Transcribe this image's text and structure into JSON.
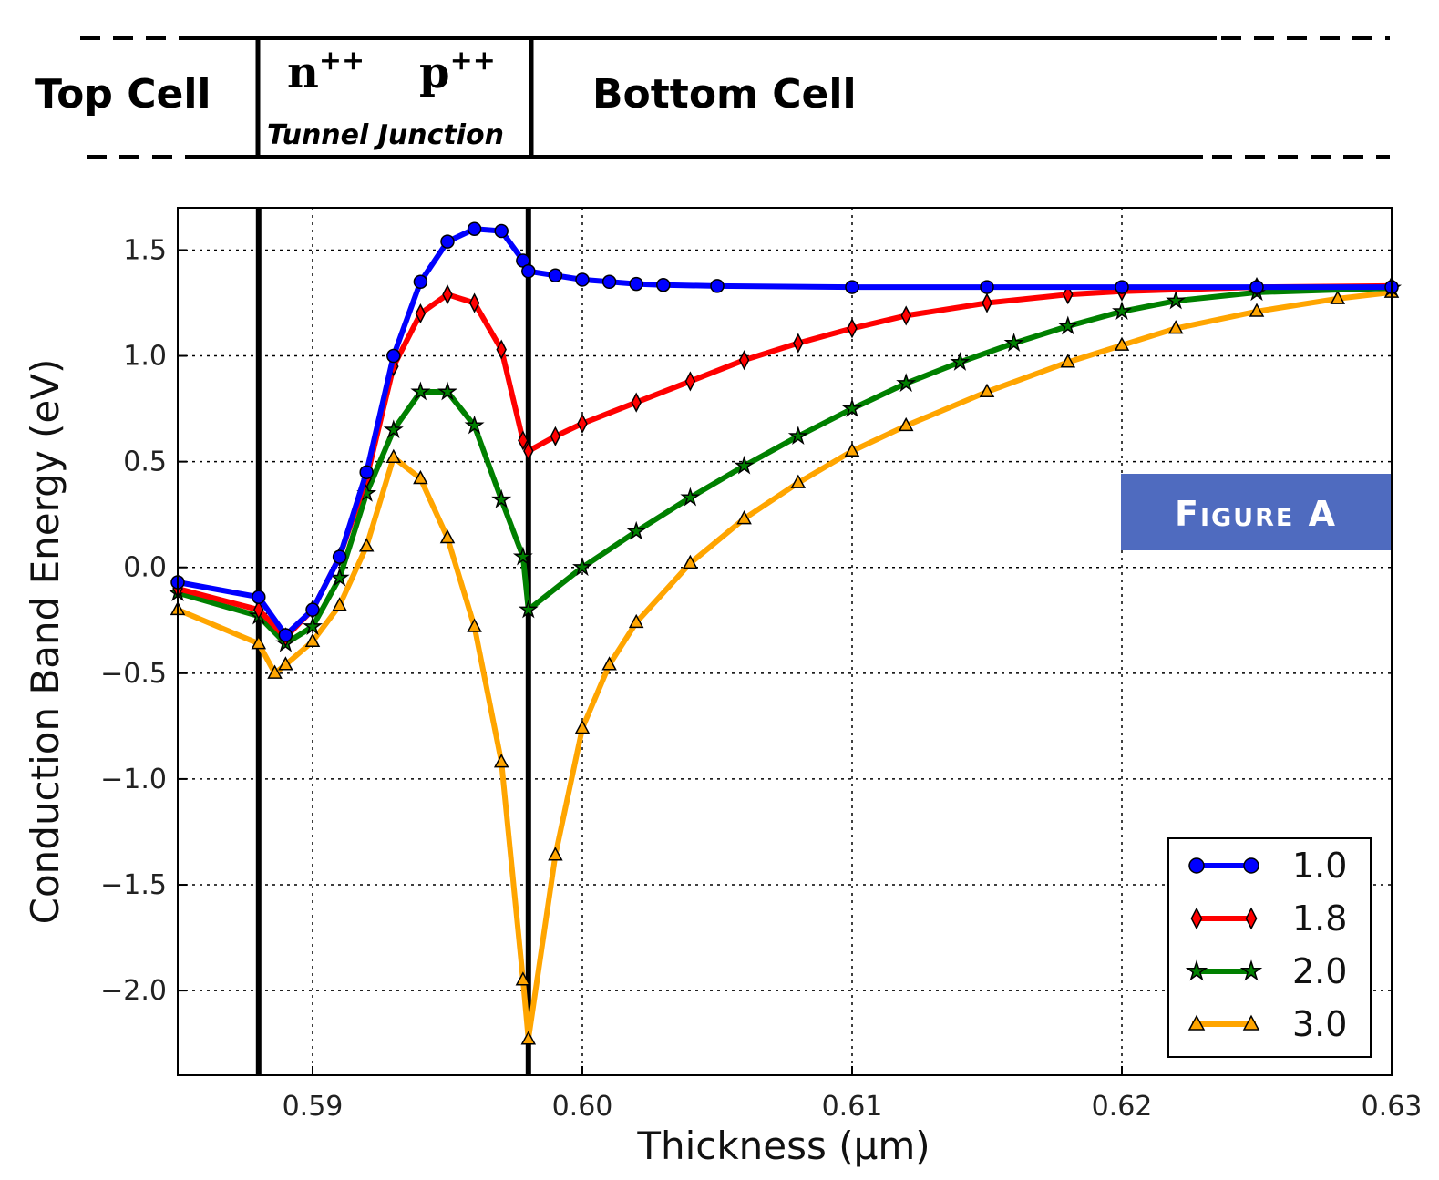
{
  "header": {
    "top_cell": "Top Cell",
    "n_label": "n",
    "n_sup": "++",
    "p_label": "p",
    "p_sup": "++",
    "tunnel_junction": "Tunnel Junction",
    "bottom_cell": "Bottom Cell"
  },
  "badge": {
    "text": "Figure A",
    "color": "#4f6bbf"
  },
  "chart_data": {
    "type": "line",
    "title": "",
    "xlabel": "Thickness (μm)",
    "ylabel": "Conduction Band Energy (eV)",
    "xlim": [
      0.585,
      0.63
    ],
    "ylim": [
      -2.4,
      1.7
    ],
    "xticks": [
      0.59,
      0.6,
      0.61,
      0.62,
      0.63
    ],
    "xtick_labels": [
      "0.59",
      "0.60",
      "0.61",
      "0.62",
      "0.63"
    ],
    "yticks": [
      1.5,
      1.0,
      0.5,
      0.0,
      -0.5,
      -1.0,
      -1.5,
      -2.0
    ],
    "ytick_labels": [
      "1.5",
      "1.0",
      "0.5",
      "0.0",
      "−0.5",
      "−1.0",
      "−1.5",
      "−2.0"
    ],
    "grid": true,
    "legend_position": "bottom-right",
    "vertical_lines": [
      0.588,
      0.598
    ],
    "series": [
      {
        "name": "1.0",
        "color": "#0000ff",
        "marker": "circle",
        "points": [
          [
            0.585,
            -0.07
          ],
          [
            0.588,
            -0.14
          ],
          [
            0.589,
            -0.32
          ],
          [
            0.59,
            -0.2
          ],
          [
            0.591,
            0.05
          ],
          [
            0.592,
            0.45
          ],
          [
            0.593,
            1.0
          ],
          [
            0.594,
            1.35
          ],
          [
            0.595,
            1.54
          ],
          [
            0.596,
            1.6
          ],
          [
            0.597,
            1.59
          ],
          [
            0.5978,
            1.45
          ],
          [
            0.598,
            1.4
          ],
          [
            0.599,
            1.38
          ],
          [
            0.6,
            1.36
          ],
          [
            0.601,
            1.35
          ],
          [
            0.602,
            1.34
          ],
          [
            0.603,
            1.335
          ],
          [
            0.605,
            1.33
          ],
          [
            0.61,
            1.325
          ],
          [
            0.615,
            1.325
          ],
          [
            0.62,
            1.325
          ],
          [
            0.625,
            1.325
          ],
          [
            0.63,
            1.325
          ]
        ]
      },
      {
        "name": "1.8",
        "color": "#ff0000",
        "marker": "diamond",
        "points": [
          [
            0.585,
            -0.1
          ],
          [
            0.588,
            -0.2
          ],
          [
            0.589,
            -0.33
          ],
          [
            0.59,
            -0.2
          ],
          [
            0.591,
            0.05
          ],
          [
            0.592,
            0.42
          ],
          [
            0.593,
            0.95
          ],
          [
            0.594,
            1.2
          ],
          [
            0.595,
            1.29
          ],
          [
            0.596,
            1.25
          ],
          [
            0.597,
            1.03
          ],
          [
            0.5978,
            0.6
          ],
          [
            0.598,
            0.55
          ],
          [
            0.599,
            0.62
          ],
          [
            0.6,
            0.68
          ],
          [
            0.602,
            0.78
          ],
          [
            0.604,
            0.88
          ],
          [
            0.606,
            0.98
          ],
          [
            0.608,
            1.06
          ],
          [
            0.61,
            1.13
          ],
          [
            0.612,
            1.19
          ],
          [
            0.615,
            1.25
          ],
          [
            0.618,
            1.29
          ],
          [
            0.62,
            1.305
          ],
          [
            0.625,
            1.325
          ],
          [
            0.63,
            1.33
          ]
        ]
      },
      {
        "name": "2.0",
        "color": "#008000",
        "marker": "star",
        "points": [
          [
            0.585,
            -0.12
          ],
          [
            0.588,
            -0.23
          ],
          [
            0.589,
            -0.36
          ],
          [
            0.59,
            -0.28
          ],
          [
            0.591,
            -0.05
          ],
          [
            0.592,
            0.35
          ],
          [
            0.593,
            0.65
          ],
          [
            0.594,
            0.83
          ],
          [
            0.595,
            0.83
          ],
          [
            0.596,
            0.67
          ],
          [
            0.597,
            0.32
          ],
          [
            0.5978,
            0.05
          ],
          [
            0.598,
            -0.2
          ],
          [
            0.6,
            0.0
          ],
          [
            0.602,
            0.17
          ],
          [
            0.604,
            0.33
          ],
          [
            0.606,
            0.48
          ],
          [
            0.608,
            0.62
          ],
          [
            0.61,
            0.75
          ],
          [
            0.612,
            0.87
          ],
          [
            0.614,
            0.97
          ],
          [
            0.616,
            1.06
          ],
          [
            0.618,
            1.14
          ],
          [
            0.62,
            1.21
          ],
          [
            0.622,
            1.26
          ],
          [
            0.625,
            1.3
          ],
          [
            0.63,
            1.32
          ]
        ]
      },
      {
        "name": "3.0",
        "color": "#ffa500",
        "marker": "triangle",
        "points": [
          [
            0.585,
            -0.2
          ],
          [
            0.588,
            -0.36
          ],
          [
            0.5886,
            -0.5
          ],
          [
            0.589,
            -0.46
          ],
          [
            0.59,
            -0.35
          ],
          [
            0.591,
            -0.18
          ],
          [
            0.592,
            0.1
          ],
          [
            0.593,
            0.52
          ],
          [
            0.594,
            0.42
          ],
          [
            0.595,
            0.14
          ],
          [
            0.596,
            -0.28
          ],
          [
            0.597,
            -0.92
          ],
          [
            0.5978,
            -1.95
          ],
          [
            0.598,
            -2.23
          ],
          [
            0.599,
            -1.36
          ],
          [
            0.6,
            -0.76
          ],
          [
            0.601,
            -0.46
          ],
          [
            0.602,
            -0.26
          ],
          [
            0.604,
            0.02
          ],
          [
            0.606,
            0.23
          ],
          [
            0.608,
            0.4
          ],
          [
            0.61,
            0.55
          ],
          [
            0.612,
            0.67
          ],
          [
            0.615,
            0.83
          ],
          [
            0.618,
            0.97
          ],
          [
            0.62,
            1.05
          ],
          [
            0.622,
            1.13
          ],
          [
            0.625,
            1.21
          ],
          [
            0.628,
            1.27
          ],
          [
            0.63,
            1.3
          ]
        ]
      }
    ]
  }
}
